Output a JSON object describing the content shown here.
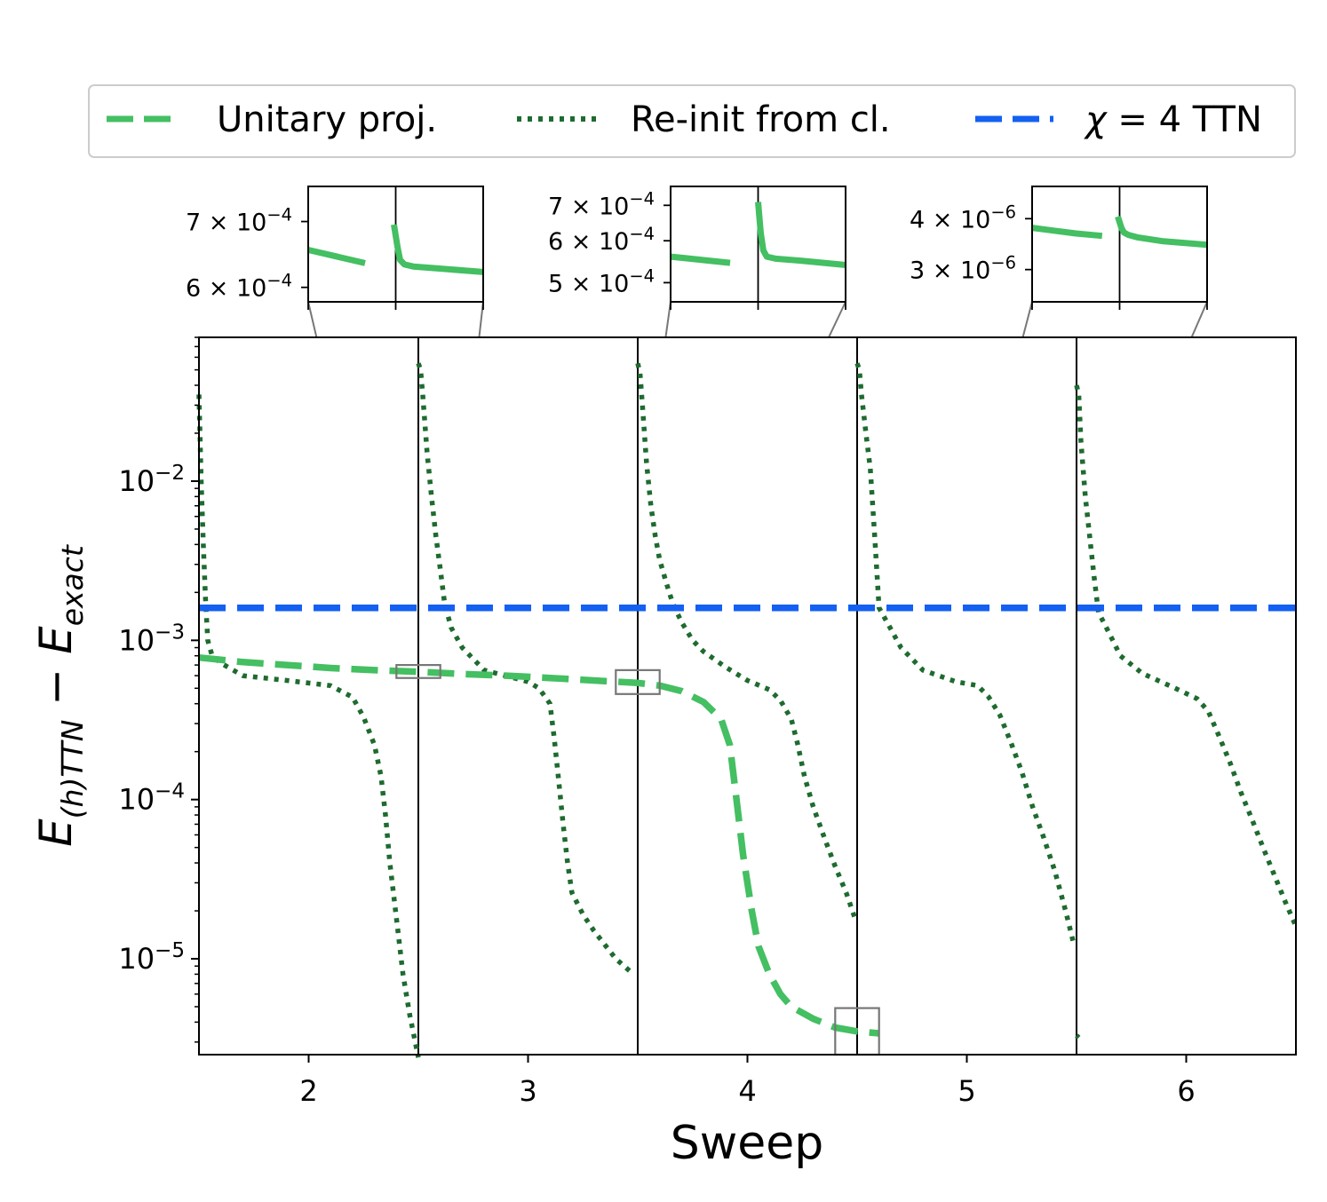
{
  "chart_data": {
    "type": "line",
    "xlabel": "Sweep",
    "ylabel": "E(h)TTN − Eexact",
    "ylabel_parts": {
      "main": "E",
      "main_sub": "(h)TTN",
      "minus": "−",
      "second": "E",
      "second_sub": "exact"
    },
    "xlim": [
      1.5,
      6.5
    ],
    "ylim": [
      2.5e-06,
      0.08
    ],
    "yscale": "log",
    "xticks": [
      2,
      3,
      4,
      5,
      6
    ],
    "xtick_labels": [
      "2",
      "3",
      "4",
      "5",
      "6"
    ],
    "yticks": [
      {
        "value": 1e-05,
        "base": "10",
        "exp": "−5"
      },
      {
        "value": 0.0001,
        "base": "10",
        "exp": "−4"
      },
      {
        "value": 0.001,
        "base": "10",
        "exp": "−3"
      },
      {
        "value": 0.01,
        "base": "10",
        "exp": "−2"
      }
    ],
    "vertical_lines": [
      2.5,
      3.5,
      4.5,
      5.5
    ],
    "legend": {
      "placement": "top",
      "entries": [
        {
          "label": "Unitary proj.",
          "style": "dashed",
          "color": "#44bf62"
        },
        {
          "label": "Re-init from cl.",
          "style": "dotted",
          "color": "#1e6b2f"
        },
        {
          "label_greek": "χ",
          "label_rest": " = 4 TTN",
          "style": "dashed",
          "color": "#1460f2"
        }
      ]
    },
    "series": [
      {
        "name": "Unitary proj.",
        "color": "#44bf62",
        "style": "dashed",
        "x": [
          1.5,
          1.7,
          1.9,
          2.1,
          2.3,
          2.5,
          2.7,
          2.9,
          3.1,
          3.3,
          3.5,
          3.6,
          3.7,
          3.8,
          3.88,
          3.92,
          3.95,
          3.98,
          4.02,
          4.05,
          4.1,
          4.15,
          4.2,
          4.3,
          4.4,
          4.5,
          4.6
        ],
        "y": [
          0.00078,
          0.00073,
          0.0007,
          0.00067,
          0.00065,
          0.000635,
          0.000615,
          0.0006,
          0.00058,
          0.00056,
          0.00054,
          0.00052,
          0.00048,
          0.00041,
          0.00032,
          0.00022,
          0.0001,
          4.5e-05,
          2e-05,
          1.2e-05,
          8e-06,
          6e-06,
          5e-06,
          4.2e-06,
          3.7e-06,
          3.5e-06,
          3.4e-06
        ]
      },
      {
        "name": "Re-init from cl.",
        "color": "#1e6b2f",
        "style": "dotted",
        "segments": [
          {
            "x": [
              1.5,
              1.51,
              1.52,
              1.53,
              1.54,
              1.56,
              1.6,
              1.7,
              1.9,
              2.1,
              2.2,
              2.25,
              2.3,
              2.33,
              2.35,
              2.37,
              2.4,
              2.43,
              2.46,
              2.5
            ],
            "y": [
              0.035,
              0.01,
              0.004,
              0.0018,
              0.001,
              0.0008,
              0.00072,
              0.0006,
              0.00056,
              0.00052,
              0.00044,
              0.00033,
              0.00022,
              0.00014,
              8e-05,
              4e-05,
              1.8e-05,
              8e-06,
              4.5e-06,
              2.4e-06
            ]
          },
          {
            "x": [
              2.5,
              2.51,
              2.52,
              2.54,
              2.56,
              2.58,
              2.6,
              2.62,
              2.65,
              2.7,
              2.8,
              3.0,
              3.05,
              3.1,
              3.12,
              3.14,
              3.16,
              3.18,
              3.2,
              3.25,
              3.3,
              3.4,
              3.48
            ],
            "y": [
              0.055,
              0.05,
              0.035,
              0.015,
              0.008,
              0.0045,
              0.0028,
              0.0017,
              0.0012,
              0.0009,
              0.00065,
              0.00055,
              0.0005,
              0.0004,
              0.00024,
              0.00013,
              7e-05,
              4e-05,
              2.6e-05,
              1.9e-05,
              1.5e-05,
              1e-05,
              8e-06
            ]
          },
          {
            "x": [
              3.5,
              3.51,
              3.52,
              3.54,
              3.56,
              3.58,
              3.6,
              3.63,
              3.66,
              3.7,
              3.75,
              3.8,
              3.9,
              4.0,
              4.1,
              4.15,
              4.2,
              4.23,
              4.26,
              4.3,
              4.35,
              4.4,
              4.45,
              4.49
            ],
            "y": [
              0.055,
              0.048,
              0.032,
              0.013,
              0.007,
              0.0045,
              0.0032,
              0.0023,
              0.0017,
              0.0013,
              0.001,
              0.00085,
              0.00068,
              0.00056,
              0.00049,
              0.00042,
              0.00032,
              0.00022,
              0.00014,
              9e-05,
              5.8e-05,
              3.8e-05,
              2.6e-05,
              1.8e-05
            ]
          },
          {
            "x": [
              4.5,
              4.51,
              4.52,
              4.54,
              4.56,
              4.58,
              4.6,
              4.65,
              4.7,
              4.8,
              4.95,
              5.05,
              5.1,
              5.15,
              5.2,
              5.25,
              5.3,
              5.35,
              5.4,
              5.45,
              5.49
            ],
            "y": [
              0.055,
              0.05,
              0.035,
              0.02,
              0.012,
              0.0045,
              0.0016,
              0.0012,
              0.0009,
              0.00065,
              0.00055,
              0.00052,
              0.00044,
              0.00034,
              0.00023,
              0.00015,
              9e-05,
              5.8e-05,
              3.6e-05,
              2e-05,
              1.2e-05
            ]
          },
          {
            "x": [
              5.5,
              5.51,
              5.52,
              5.54,
              5.56,
              5.58,
              5.6,
              5.65,
              5.7,
              5.8,
              5.95,
              6.05,
              6.1,
              6.15,
              6.2,
              6.25,
              6.3,
              6.35,
              6.4,
              6.45,
              6.5
            ],
            "y": [
              0.04,
              0.035,
              0.018,
              0.008,
              0.0045,
              0.0025,
              0.0015,
              0.0011,
              0.0008,
              0.00062,
              0.0005,
              0.00043,
              0.00036,
              0.00025,
              0.00017,
              0.00011,
              7.5e-05,
              5e-05,
              3.4e-05,
              2.3e-05,
              1.6e-05
            ]
          },
          {
            "x": [
              5.5,
              5.51
            ],
            "y": [
              3.3e-06,
              3.2e-06
            ]
          }
        ]
      },
      {
        "name": "χ = 4 TTN",
        "color": "#1460f2",
        "style": "dashed",
        "x": [
          1.5,
          6.5
        ],
        "y": [
          0.0016,
          0.0016
        ]
      }
    ],
    "insets": [
      {
        "xlim": [
          2.4,
          2.6
        ],
        "ylim": [
          0.00058,
          0.00076
        ],
        "box": {
          "x": [
            2.4,
            2.6
          ],
          "y": [
            0.00058,
            0.0007
          ]
        },
        "ticks": [
          {
            "value": 0.0006,
            "mant": "6",
            "exp": "−4"
          },
          {
            "value": 0.0007,
            "mant": "7",
            "exp": "−4"
          }
        ],
        "segments": [
          {
            "x": [
              2.4,
              2.465
            ],
            "y": [
              0.000655,
              0.000635
            ]
          },
          {
            "x": [
              2.498,
              2.502,
              2.505,
              2.51,
              2.52,
              2.55,
              2.6
            ],
            "y": [
              0.000695,
              0.00066,
              0.00064,
              0.000633,
              0.00063,
              0.000627,
              0.000622
            ]
          }
        ]
      },
      {
        "xlim": [
          3.4,
          3.6
        ],
        "ylim": [
          0.00046,
          0.00076
        ],
        "box": {
          "x": [
            3.4,
            3.6
          ],
          "y": [
            0.00046,
            0.00065
          ]
        },
        "ticks": [
          {
            "value": 0.0005,
            "mant": "5",
            "exp": "−4"
          },
          {
            "value": 0.0006,
            "mant": "6",
            "exp": "−4"
          },
          {
            "value": 0.0007,
            "mant": "7",
            "exp": "−4"
          }
        ],
        "segments": [
          {
            "x": [
              3.4,
              3.468
            ],
            "y": [
              0.00056,
              0.000545
            ]
          },
          {
            "x": [
              3.5,
              3.503,
              3.506,
              3.51,
              3.52,
              3.55,
              3.6
            ],
            "y": [
              0.00071,
              0.00062,
              0.000575,
              0.00056,
              0.000555,
              0.00055,
              0.00054
            ]
          }
        ]
      },
      {
        "xlim": [
          4.4,
          4.6
        ],
        "ylim": [
          2.5e-06,
          4.8e-06
        ],
        "box": {
          "x": [
            4.4,
            4.6
          ],
          "y": [
            2.5e-06,
            4.9e-06
          ]
        },
        "ticks": [
          {
            "value": 3e-06,
            "mant": "3",
            "exp": "−6"
          },
          {
            "value": 4e-06,
            "mant": "4",
            "exp": "−6"
          }
        ],
        "segments": [
          {
            "x": [
              4.4,
              4.42,
              4.45,
              4.48
            ],
            "y": [
              3.8e-06,
              3.75e-06,
              3.68e-06,
              3.63e-06
            ]
          },
          {
            "x": [
              4.498,
              4.502,
              4.505,
              4.51,
              4.52,
              4.55,
              4.6
            ],
            "y": [
              4.05e-06,
              3.8e-06,
              3.7e-06,
              3.65e-06,
              3.6e-06,
              3.52e-06,
              3.45e-06
            ]
          }
        ]
      }
    ]
  }
}
